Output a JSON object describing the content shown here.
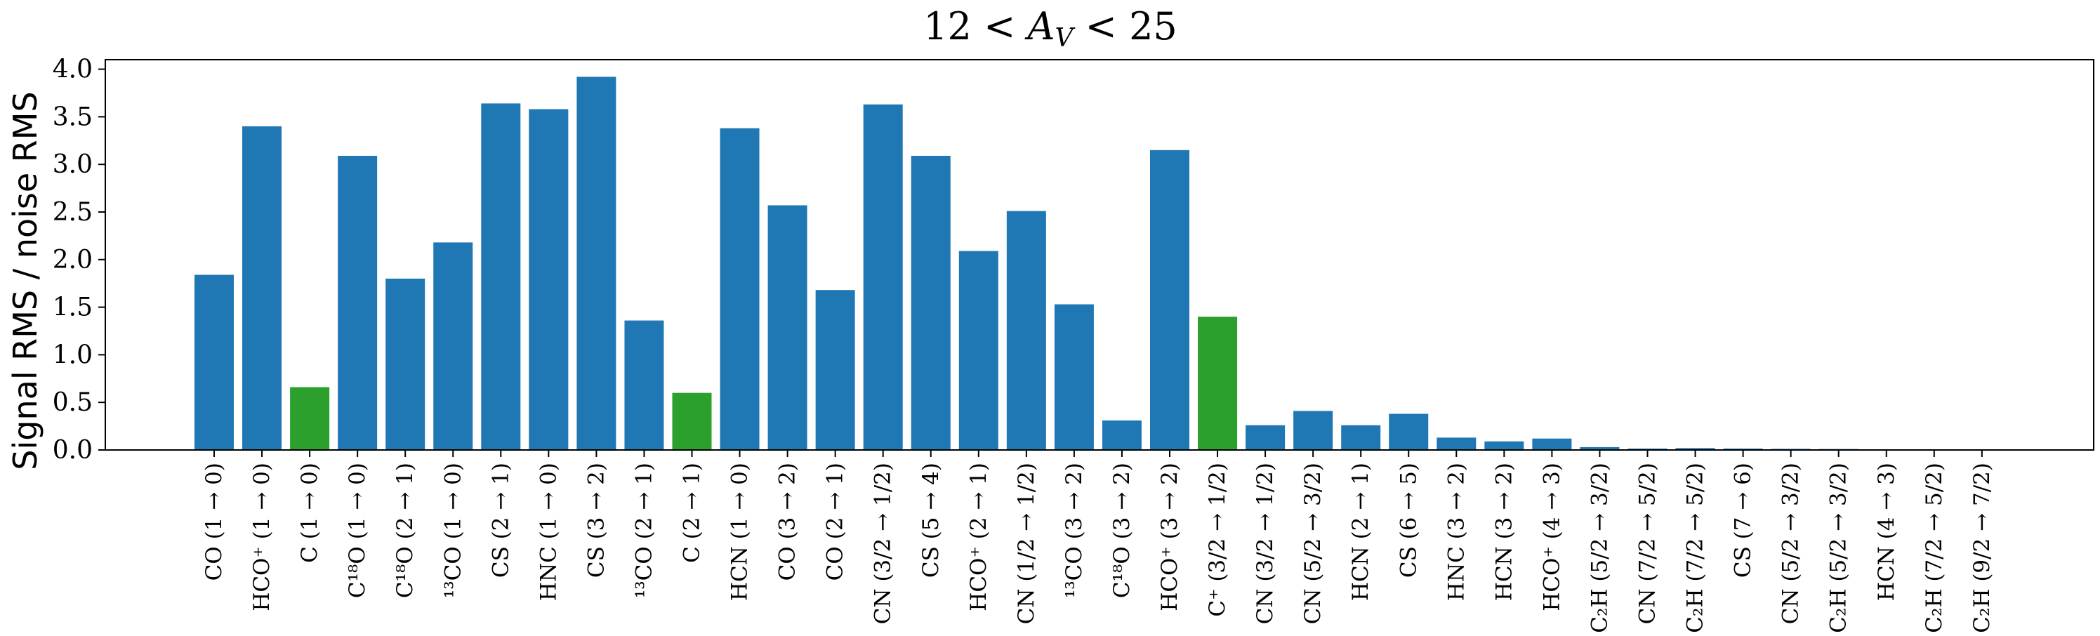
{
  "chart_data": {
    "type": "bar",
    "title": "12 < A_V < 25",
    "title_parts": {
      "lead": "12 < ",
      "var": "A",
      "sub": "V",
      "tail": " < 25"
    },
    "ylabel": "Signal RMS / noise RMS",
    "xlabel": "",
    "ylim": [
      0,
      4.1
    ],
    "yticks": [
      "0.0",
      "0.5",
      "1.0",
      "1.5",
      "2.0",
      "2.5",
      "3.0",
      "3.5",
      "4.0"
    ],
    "grid": false,
    "colors": {
      "default": "#1f77b4",
      "highlight": "#2ca02c"
    },
    "categories": [
      "CO (1 → 0)",
      "HCO⁺ (1 → 0)",
      "C (1 → 0)",
      "C¹⁸O (1 → 0)",
      "C¹⁸O (2 → 1)",
      "¹³CO (1 → 0)",
      "CS (2 → 1)",
      "HNC (1 → 0)",
      "CS (3 → 2)",
      "¹³CO (2 → 1)",
      "C (2 → 1)",
      "HCN (1 → 0)",
      "CO (3 → 2)",
      "CO (2 → 1)",
      "CN (3/2 → 1/2)",
      "CS (5 → 4)",
      "HCO⁺ (2 → 1)",
      "CN (1/2 → 1/2)",
      "¹³CO (3 → 2)",
      "C¹⁸O (3 → 2)",
      "HCO⁺ (3 → 2)",
      "C⁺ (3/2 → 1/2)",
      "CN (3/2 → 1/2)",
      "CN (5/2 → 3/2)",
      "HCN (2 → 1)",
      "CS (6 → 5)",
      "HNC (3 → 2)",
      "HCN (3 → 2)",
      "HCO⁺ (4 → 3)",
      "C₂H (5/2 → 3/2)",
      "CN (7/2 → 5/2)",
      "C₂H (7/2 → 5/2)",
      "CS (7 → 6)",
      "CN (5/2 → 3/2)",
      "C₂H (5/2 → 3/2)",
      "HCN (4 → 3)",
      "C₂H (7/2 → 5/2)",
      "C₂H (9/2 → 7/2)"
    ],
    "values": [
      1.84,
      3.4,
      0.66,
      3.09,
      1.8,
      2.18,
      3.64,
      3.58,
      3.92,
      1.36,
      0.6,
      3.38,
      2.57,
      1.68,
      3.63,
      3.09,
      2.09,
      2.51,
      1.53,
      0.31,
      3.15,
      1.4,
      0.26,
      0.41,
      0.26,
      0.38,
      0.13,
      0.09,
      0.12,
      0.03,
      0.015,
      0.02,
      0.015,
      0.012,
      0.01,
      0.005,
      0.004,
      0.003
    ],
    "highlight": [
      false,
      false,
      true,
      false,
      false,
      false,
      false,
      false,
      false,
      false,
      true,
      false,
      false,
      false,
      false,
      false,
      false,
      false,
      false,
      false,
      false,
      true,
      false,
      false,
      false,
      false,
      false,
      false,
      false,
      false,
      false,
      false,
      false,
      false,
      false,
      false,
      false,
      false
    ]
  }
}
